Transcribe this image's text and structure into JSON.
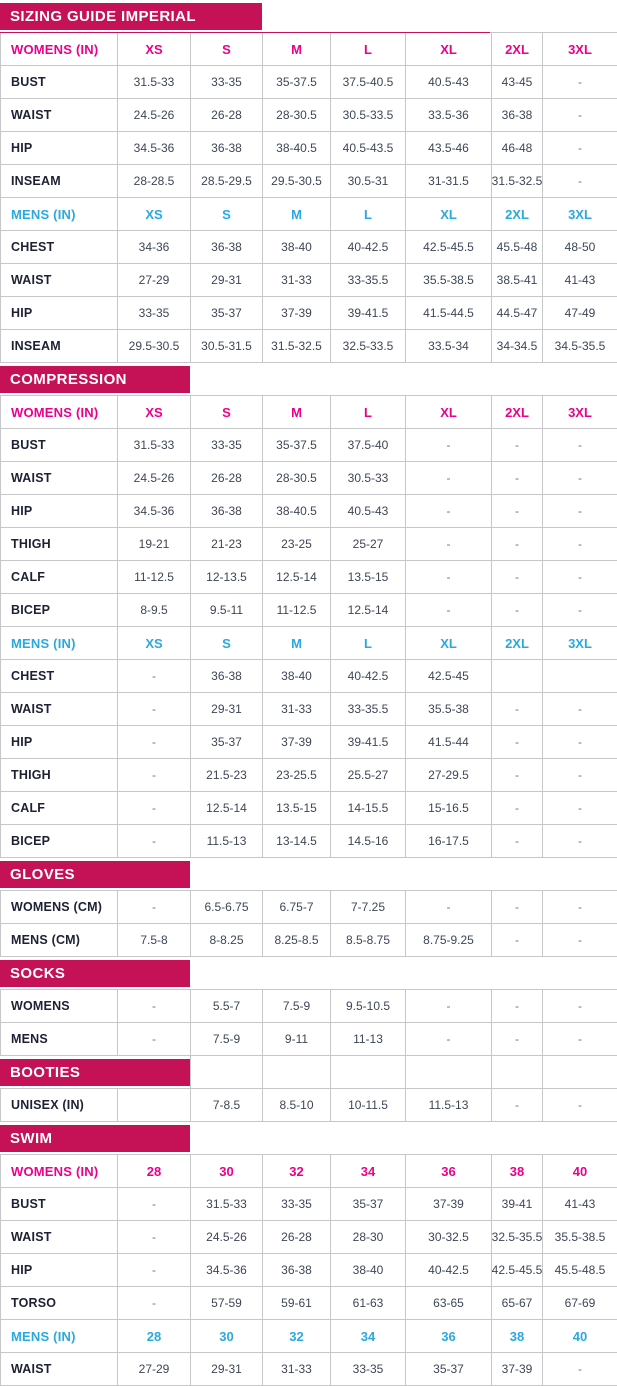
{
  "colors": {
    "section_bar_background": "#c51256",
    "womens_header_text": "#ec008b",
    "mens_header_text": "#2aa9e0",
    "row_label_text": "#1d2133",
    "value_text": "#3d4656",
    "grid_border": "#c5c7c9"
  },
  "sections": [
    {
      "title": "SIZING GUIDE IMPERIAL",
      "bar": "wide",
      "tables": [
        {
          "header": {
            "label": "WOMENS (IN)",
            "theme": "womens",
            "sizes": [
              "XS",
              "S",
              "M",
              "L",
              "XL",
              "2XL",
              "3XL"
            ]
          },
          "rows": [
            {
              "label": "BUST",
              "values": [
                "31.5-33",
                "33-35",
                "35-37.5",
                "37.5-40.5",
                "40.5-43",
                "43-45",
                "-"
              ]
            },
            {
              "label": "WAIST",
              "values": [
                "24.5-26",
                "26-28",
                "28-30.5",
                "30.5-33.5",
                "33.5-36",
                "36-38",
                "-"
              ]
            },
            {
              "label": "HIP",
              "values": [
                "34.5-36",
                "36-38",
                "38-40.5",
                "40.5-43.5",
                "43.5-46",
                "46-48",
                "-"
              ]
            },
            {
              "label": "INSEAM",
              "values": [
                "28-28.5",
                "28.5-29.5",
                "29.5-30.5",
                "30.5-31",
                "31-31.5",
                "31.5-32.5",
                "-"
              ]
            }
          ]
        },
        {
          "header": {
            "label": "MENS (IN)",
            "theme": "mens",
            "sizes": [
              "XS",
              "S",
              "M",
              "L",
              "XL",
              "2XL",
              "3XL"
            ]
          },
          "rows": [
            {
              "label": "CHEST",
              "values": [
                "34-36",
                "36-38",
                "38-40",
                "40-42.5",
                "42.5-45.5",
                "45.5-48",
                "48-50"
              ]
            },
            {
              "label": "WAIST",
              "values": [
                "27-29",
                "29-31",
                "31-33",
                "33-35.5",
                "35.5-38.5",
                "38.5-41",
                "41-43"
              ]
            },
            {
              "label": "HIP",
              "values": [
                "33-35",
                "35-37",
                "37-39",
                "39-41.5",
                "41.5-44.5",
                "44.5-47",
                "47-49"
              ]
            },
            {
              "label": "INSEAM",
              "values": [
                "29.5-30.5",
                "30.5-31.5",
                "31.5-32.5",
                "32.5-33.5",
                "33.5-34",
                "34-34.5",
                "34.5-35.5"
              ]
            }
          ]
        }
      ]
    },
    {
      "title": "COMPRESSION",
      "bar": "narrow",
      "tables": [
        {
          "header": {
            "label": "WOMENS (IN)",
            "theme": "womens",
            "sizes": [
              "XS",
              "S",
              "M",
              "L",
              "XL",
              "2XL",
              "3XL"
            ]
          },
          "rows": [
            {
              "label": "BUST",
              "values": [
                "31.5-33",
                "33-35",
                "35-37.5",
                "37.5-40",
                "-",
                "-",
                "-"
              ]
            },
            {
              "label": "WAIST",
              "values": [
                "24.5-26",
                "26-28",
                "28-30.5",
                "30.5-33",
                "-",
                "-",
                "-"
              ]
            },
            {
              "label": "HIP",
              "values": [
                "34.5-36",
                "36-38",
                "38-40.5",
                "40.5-43",
                "-",
                "-",
                "-"
              ]
            },
            {
              "label": "THIGH",
              "values": [
                "19-21",
                "21-23",
                "23-25",
                "25-27",
                "-",
                "-",
                "-"
              ]
            },
            {
              "label": "CALF",
              "values": [
                "11-12.5",
                "12-13.5",
                "12.5-14",
                "13.5-15",
                "-",
                "-",
                "-"
              ]
            },
            {
              "label": "BICEP",
              "values": [
                "8-9.5",
                "9.5-11",
                "11-12.5",
                "12.5-14",
                "-",
                "-",
                "-"
              ]
            }
          ]
        },
        {
          "header": {
            "label": "MENS (IN)",
            "theme": "mens",
            "sizes": [
              "XS",
              "S",
              "M",
              "L",
              "XL",
              "2XL",
              "3XL"
            ]
          },
          "rows": [
            {
              "label": "CHEST",
              "values": [
                "-",
                "36-38",
                "38-40",
                "40-42.5",
                "42.5-45",
                "",
                ""
              ]
            },
            {
              "label": "WAIST",
              "values": [
                "-",
                "29-31",
                "31-33",
                "33-35.5",
                "35.5-38",
                "-",
                "-"
              ]
            },
            {
              "label": "HIP",
              "values": [
                "-",
                "35-37",
                "37-39",
                "39-41.5",
                "41.5-44",
                "-",
                "-"
              ]
            },
            {
              "label": "THIGH",
              "values": [
                "-",
                "21.5-23",
                "23-25.5",
                "25.5-27",
                "27-29.5",
                "-",
                "-"
              ]
            },
            {
              "label": "CALF",
              "values": [
                "-",
                "12.5-14",
                "13.5-15",
                "14-15.5",
                "15-16.5",
                "-",
                "-"
              ]
            },
            {
              "label": "BICEP",
              "values": [
                "-",
                "11.5-13",
                "13-14.5",
                "14.5-16",
                "16-17.5",
                "-",
                "-"
              ]
            }
          ]
        }
      ]
    },
    {
      "title": "GLOVES",
      "bar": "narrow",
      "tables": [
        {
          "header": null,
          "rows": [
            {
              "label": "WOMENS (CM)",
              "values": [
                "-",
                "6.5-6.75",
                "6.75-7",
                "7-7.25",
                "-",
                "-",
                "-"
              ]
            },
            {
              "label": "MENS (CM)",
              "values": [
                "7.5-8",
                "8-8.25",
                "8.25-8.5",
                "8.5-8.75",
                "8.75-9.25",
                "-",
                "-"
              ]
            }
          ]
        }
      ]
    },
    {
      "title": "SOCKS",
      "bar": "narrow",
      "tables": [
        {
          "header": null,
          "rows": [
            {
              "label": "WOMENS",
              "values": [
                "-",
                "5.5-7",
                "7.5-9",
                "9.5-10.5",
                "-",
                "-",
                "-"
              ]
            },
            {
              "label": "MENS",
              "values": [
                "-",
                "7.5-9",
                "9-11",
                "11-13",
                "-",
                "-",
                "-"
              ]
            }
          ]
        }
      ]
    },
    {
      "title": "BOOTIES",
      "bar": "narrow",
      "bar_gap_bordered": true,
      "tables": [
        {
          "header": null,
          "rows": [
            {
              "label": "UNISEX (IN)",
              "values": [
                "",
                "7-8.5",
                "8.5-10",
                "10-11.5",
                "11.5-13",
                "-",
                "-"
              ]
            }
          ]
        }
      ]
    },
    {
      "title": "SWIM",
      "bar": "narrow",
      "tables": [
        {
          "header": {
            "label": "WOMENS (IN)",
            "theme": "womens",
            "sizes": [
              "28",
              "30",
              "32",
              "34",
              "36",
              "38",
              "40"
            ]
          },
          "rows": [
            {
              "label": "BUST",
              "values": [
                "-",
                "31.5-33",
                "33-35",
                "35-37",
                "37-39",
                "39-41",
                "41-43"
              ]
            },
            {
              "label": "WAIST",
              "values": [
                "-",
                "24.5-26",
                "26-28",
                "28-30",
                "30-32.5",
                "32.5-35.5",
                "35.5-38.5"
              ]
            },
            {
              "label": "HIP",
              "values": [
                "-",
                "34.5-36",
                "36-38",
                "38-40",
                "40-42.5",
                "42.5-45.5",
                "45.5-48.5"
              ]
            },
            {
              "label": "TORSO",
              "values": [
                "-",
                "57-59",
                "59-61",
                "61-63",
                "63-65",
                "65-67",
                "67-69"
              ]
            }
          ]
        },
        {
          "header": {
            "label": "MENS (IN)",
            "theme": "mens",
            "sizes": [
              "28",
              "30",
              "32",
              "34",
              "36",
              "38",
              "40"
            ]
          },
          "rows": [
            {
              "label": "WAIST",
              "values": [
                "27-29",
                "29-31",
                "31-33",
                "33-35",
                "35-37",
                "37-39",
                "-"
              ]
            }
          ]
        }
      ]
    }
  ]
}
